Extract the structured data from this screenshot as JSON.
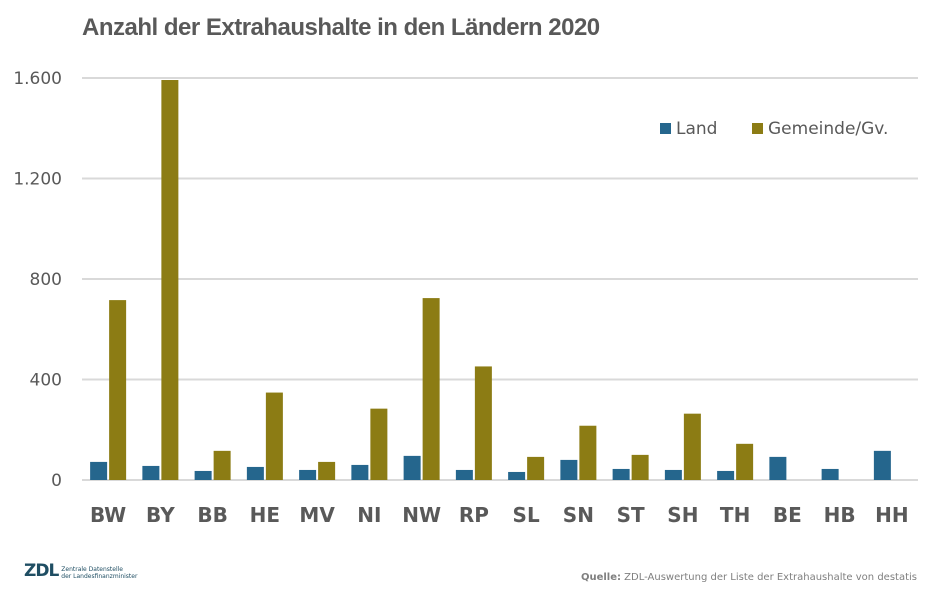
{
  "chart_data": {
    "type": "bar",
    "title": "Anzahl der Extrahaushalte in den Ländern 2020",
    "xlabel": "",
    "ylabel": "",
    "ylim": [
      0,
      1600
    ],
    "yticks": [
      0,
      400,
      800,
      1200,
      1600
    ],
    "ytick_labels": [
      "0",
      "400",
      "800",
      "1.200",
      "1.600"
    ],
    "grid": true,
    "legend_position": "top-right",
    "categories": [
      "BW",
      "BY",
      "BB",
      "HE",
      "MV",
      "NI",
      "NW",
      "RP",
      "SL",
      "SN",
      "ST",
      "SH",
      "TH",
      "BE",
      "HB",
      "HH"
    ],
    "series": [
      {
        "name": "Land",
        "color": "#25668D",
        "values": [
          72,
          56,
          36,
          52,
          40,
          60,
          96,
          40,
          32,
          80,
          44,
          40,
          36,
          92,
          44,
          116
        ]
      },
      {
        "name": "Gemeinde/Gv.",
        "color": "#8C7C14",
        "values": [
          716,
          1592,
          116,
          348,
          72,
          284,
          724,
          452,
          92,
          216,
          100,
          264,
          144,
          0,
          0,
          0
        ]
      }
    ],
    "gridline_color": "#D9D9D9"
  },
  "footer": {
    "logo_mark": "ZDL",
    "logo_line1": "Zentrale Datenstelle",
    "logo_line2": "der Landesfinanzminister",
    "source_label": "Quelle:",
    "source_text": " ZDL-Auswertung der Liste der Extrahaushalte von destatis"
  }
}
